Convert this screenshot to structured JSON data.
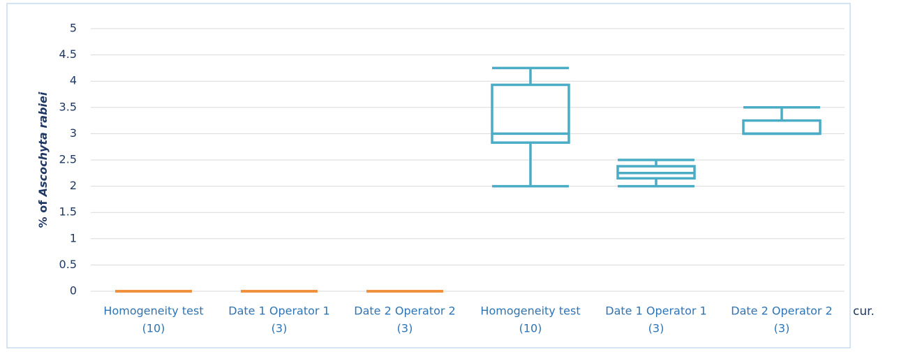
{
  "chart_data": {
    "type": "box",
    "y_label": {
      "text": "% of ",
      "italic": "Ascochyta rabiei"
    },
    "annotation": "cur.",
    "categories": [
      [
        "Homogeneity test",
        "(10)"
      ],
      [
        "Date 1 Operator 1",
        "(3)"
      ],
      [
        "Date 2 Operator 2",
        "(3)"
      ],
      [
        "Homogeneity test",
        "(10)"
      ],
      [
        "Date 1 Operator 1",
        "(3)"
      ],
      [
        "Date 2 Operator 2",
        "(3)"
      ]
    ],
    "boxes": [
      {
        "min": 0,
        "q1": 0,
        "median": 0,
        "q3": 0,
        "max": 0,
        "color": "#f0903a"
      },
      {
        "min": 0,
        "q1": 0,
        "median": 0,
        "q3": 0,
        "max": 0,
        "color": "#f0903a"
      },
      {
        "min": 0,
        "q1": 0,
        "median": 0,
        "q3": 0,
        "max": 0,
        "color": "#f0903a"
      },
      {
        "min": 2,
        "q1": 2.83,
        "median": 3,
        "q3": 3.93,
        "max": 4.25,
        "color": "#4bacc6"
      },
      {
        "min": 2,
        "q1": 2.15,
        "median": 2.25,
        "q3": 2.38,
        "max": 2.5,
        "color": "#4bacc6"
      },
      {
        "min": 3,
        "q1": 3,
        "median": 3,
        "q3": 3.25,
        "max": 3.5,
        "color": "#4bacc6"
      }
    ],
    "ylim": [
      0,
      5
    ],
    "yticks": [
      0,
      0.5,
      1,
      1.5,
      2,
      2.5,
      3,
      3.5,
      4,
      4.5,
      5
    ],
    "grid": true
  }
}
